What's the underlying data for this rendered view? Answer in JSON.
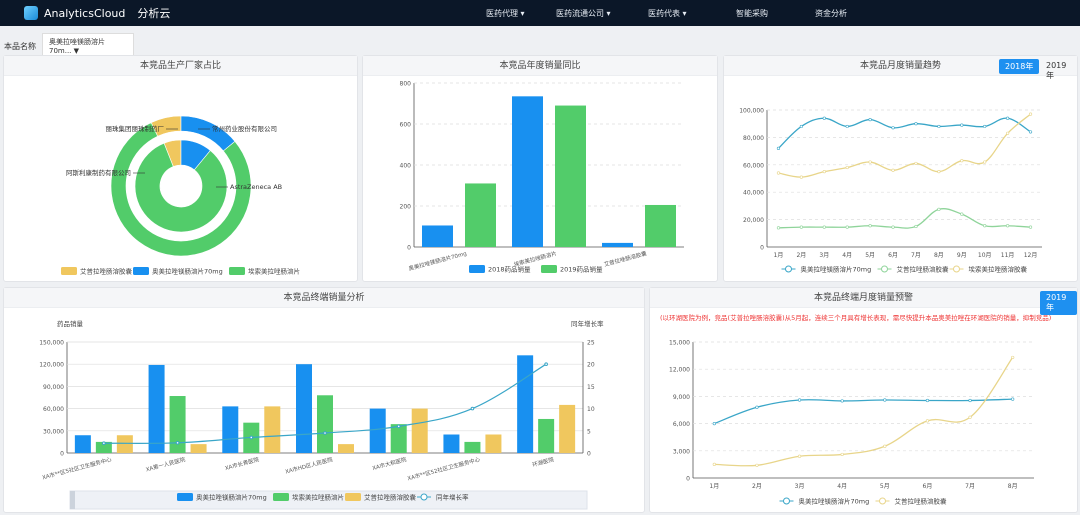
{
  "app": {
    "name": "AnalyticsCloud",
    "name_cn": "分析云"
  },
  "nav": [
    {
      "label": "医药代理 ▾"
    },
    {
      "label": "医药流通公司 ▾"
    },
    {
      "label": "医药代表 ▾"
    },
    {
      "label": "智能采购"
    },
    {
      "label": "资金分析"
    }
  ],
  "filter": {
    "label": "本品名称",
    "value": "奥美拉唑镁肠溶片70m... ▼"
  },
  "colors": {
    "blue": "#1890f0",
    "green": "#52cc6a",
    "yellow": "#f0c75e",
    "teal": "#3aa6c8",
    "nav_bg": "#0b1728"
  },
  "panels": {
    "pie": {
      "title": "本竞品生产厂家占比"
    },
    "annual": {
      "title": "本竞品年度销量同比"
    },
    "monthly": {
      "title": "本竞品月度销量趋势",
      "years": [
        "2018年",
        "2019年"
      ],
      "selected": "2018年"
    },
    "terminal": {
      "title": "本竞品终端销量分析"
    },
    "warning": {
      "title": "本竞品终端月度销量预警",
      "year": "2019年",
      "message": "(以环湖医院为例，竞品(艾普拉唑肠溶胶囊)从5月起，连续三个月具有增长表现，需尽快提升本品奥美拉唑在环湖医院的销量，抑制竞品)"
    }
  },
  "chart_data": [
    {
      "type": "pie",
      "variant": "double-donut",
      "legend": [
        "艾普拉唑肠溶胶囊",
        "奥美拉唑镁肠溶片70mg",
        "埃索美拉唑肠溶片"
      ],
      "outer": [
        {
          "name": "艾普拉唑肠溶胶囊",
          "value": 7
        },
        {
          "name": "奥美拉唑镁肠溶片70mg",
          "value": 14
        },
        {
          "name": "埃索美拉唑肠溶片",
          "value": 79
        }
      ],
      "inner": [
        {
          "name": "艾普拉唑肠溶胶囊",
          "value": 6
        },
        {
          "name": "奥美拉唑镁肠溶片70mg",
          "value": 11
        },
        {
          "name": "埃索美拉唑肠溶片",
          "value": 83
        }
      ],
      "labels": [
        "丽珠集团丽珠制药厂",
        "常州药业股份有限公司",
        "阿斯利康制药有限公司",
        "AstraZeneca AB"
      ],
      "legend_position": "bottom"
    },
    {
      "type": "bar",
      "categories": [
        "奥美拉唑镁肠溶片70mg",
        "埃索美拉唑肠溶片",
        "艾普拉唑肠溶胶囊"
      ],
      "series": [
        {
          "name": "2018药品销量",
          "values": [
            105,
            735,
            20
          ]
        },
        {
          "name": "2019药品销量",
          "values": [
            310,
            690,
            205
          ]
        }
      ],
      "ylim": [
        0,
        800
      ],
      "yticks": [
        0,
        200,
        400,
        600,
        800
      ],
      "grid": true,
      "legend_position": "bottom"
    },
    {
      "type": "line",
      "smooth": true,
      "categories": [
        "1月",
        "2月",
        "3月",
        "4月",
        "5月",
        "6月",
        "7月",
        "8月",
        "9月",
        "10月",
        "11月",
        "12月"
      ],
      "series": [
        {
          "name": "奥美拉唑镁肠溶片70mg",
          "values": [
            72000,
            88000,
            94000,
            88000,
            93000,
            87000,
            90000,
            88000,
            89000,
            88000,
            94000,
            84000
          ]
        },
        {
          "name": "艾普拉唑肠溶胶囊",
          "values": [
            14000,
            14500,
            14500,
            14500,
            15500,
            14500,
            15000,
            27500,
            24000,
            15500,
            15500,
            14500
          ]
        },
        {
          "name": "埃索美拉唑肠溶胶囊",
          "values": [
            54000,
            51000,
            55000,
            58000,
            62000,
            56000,
            61000,
            55000,
            63000,
            62000,
            83000,
            97000
          ]
        }
      ],
      "ylim": [
        0,
        100000
      ],
      "yticks": [
        "0",
        "20,000",
        "40,000",
        "60,000",
        "80,000",
        "100,000"
      ],
      "legend_position": "bottom"
    },
    {
      "type": "bar",
      "categories": [
        "XA市**区5社区卫生服务中心",
        "XA第一人民医院",
        "XA市长青医院",
        "XA市HD区人民医院",
        "XA市大和医院",
        "XA市**区52社区卫生服务中心",
        "环湖医院"
      ],
      "ylabel": "药品销量",
      "y2label": "同年增长率",
      "series": [
        {
          "name": "奥美拉唑镁肠溶片70mg",
          "values": [
            24000,
            119000,
            63000,
            120000,
            60000,
            25000,
            132000
          ]
        },
        {
          "name": "埃索美拉唑肠溶片",
          "values": [
            15000,
            77000,
            41000,
            78000,
            39000,
            15000,
            46000
          ]
        },
        {
          "name": "艾普拉唑肠溶胶囊",
          "values": [
            24000,
            12000,
            63000,
            12000,
            60000,
            25000,
            65000
          ]
        },
        {
          "name": "同年增长率",
          "type": "line",
          "axis": "right",
          "values": [
            2.2,
            2.3,
            3.5,
            4.5,
            6,
            10,
            20
          ]
        }
      ],
      "ylim": [
        0,
        150000
      ],
      "yticks": [
        "0",
        "30,000",
        "60,000",
        "90,000",
        "120,000",
        "150,000"
      ],
      "y2lim": [
        0,
        25
      ],
      "y2ticks": [
        "0",
        "5",
        "10",
        "15",
        "20",
        "25"
      ],
      "legend_position": "bottom"
    },
    {
      "type": "line",
      "smooth": true,
      "categories": [
        "1月",
        "2月",
        "3月",
        "4月",
        "5月",
        "6月",
        "7月",
        "8月"
      ],
      "series": [
        {
          "name": "奥美拉唑镁肠溶片70mg",
          "values": [
            6000,
            7800,
            8600,
            8500,
            8600,
            8550,
            8550,
            8700
          ]
        },
        {
          "name": "艾普拉唑肠溶胶囊",
          "values": [
            1500,
            1400,
            2400,
            2600,
            3500,
            6300,
            6700,
            13300
          ]
        }
      ],
      "ylim": [
        0,
        15000
      ],
      "yticks": [
        "0",
        "3,000",
        "6,000",
        "9,000",
        "12,000",
        "15,000"
      ],
      "legend_position": "bottom"
    }
  ]
}
